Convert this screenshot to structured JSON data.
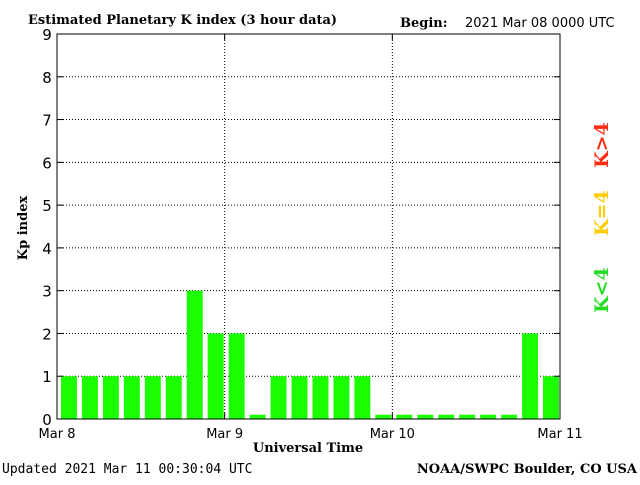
{
  "chart_data": {
    "type": "bar",
    "title": "Estimated Planetary K index (3 hour data)",
    "begin_label": "Begin:",
    "begin_value": "2021 Mar 08 0000 UTC",
    "ylabel": "Kp index",
    "xlabel": "Universal Time",
    "ylim": [
      0,
      9
    ],
    "yticks": [
      "0",
      "1",
      "2",
      "3",
      "4",
      "5",
      "6",
      "7",
      "8",
      "9"
    ],
    "xticks": [
      "Mar 8",
      "Mar 9",
      "Mar 10",
      "Mar 11"
    ],
    "xlim": [
      0,
      24
    ],
    "grid": true,
    "values": [
      1,
      1,
      1,
      1,
      1,
      1,
      3,
      2,
      2,
      0.1,
      1,
      1,
      1,
      1,
      1,
      0.1,
      0.1,
      0.1,
      0.1,
      0.1,
      0.1,
      0.1,
      2,
      1
    ],
    "bar_color": "#1cff00",
    "legend": [
      {
        "label": "K<4",
        "color": "#22dd22"
      },
      {
        "label": "K=4",
        "color": "#ffcc00"
      },
      {
        "label": "K>4",
        "color": "#ff2a10"
      }
    ]
  },
  "footer": {
    "updated": "Updated 2021 Mar 11 00:30:04 UTC",
    "credit": "NOAA/SWPC Boulder, CO USA"
  }
}
